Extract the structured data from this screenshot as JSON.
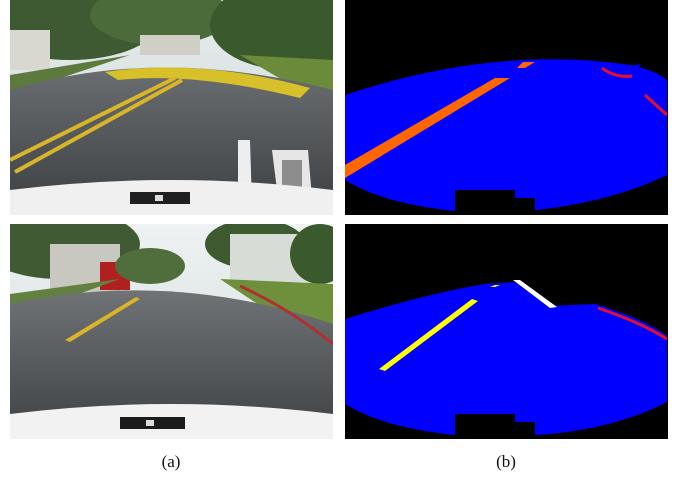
{
  "captions": {
    "a": "(a)",
    "b": "(b)"
  },
  "panels": [
    {
      "id": "a1",
      "kind": "camera-photo",
      "scene": "campus-road-speed-hump"
    },
    {
      "id": "b1",
      "kind": "segmentation-mask",
      "classes": [
        "drivable-road",
        "lane-marking-orange",
        "curb-red"
      ]
    },
    {
      "id": "a2",
      "kind": "camera-photo",
      "scene": "campus-road-yellow-lane"
    },
    {
      "id": "b2",
      "kind": "segmentation-mask",
      "classes": [
        "drivable-road",
        "lane-marking-yellow",
        "curb-red",
        "edge-white"
      ]
    }
  ],
  "colors": {
    "road_mask": "#0000ff",
    "lane_orange": "#ff6600",
    "lane_yellow": "#ffff00",
    "curb_red": "#e01030",
    "edge_white": "#ffffff",
    "background": "#000000"
  }
}
